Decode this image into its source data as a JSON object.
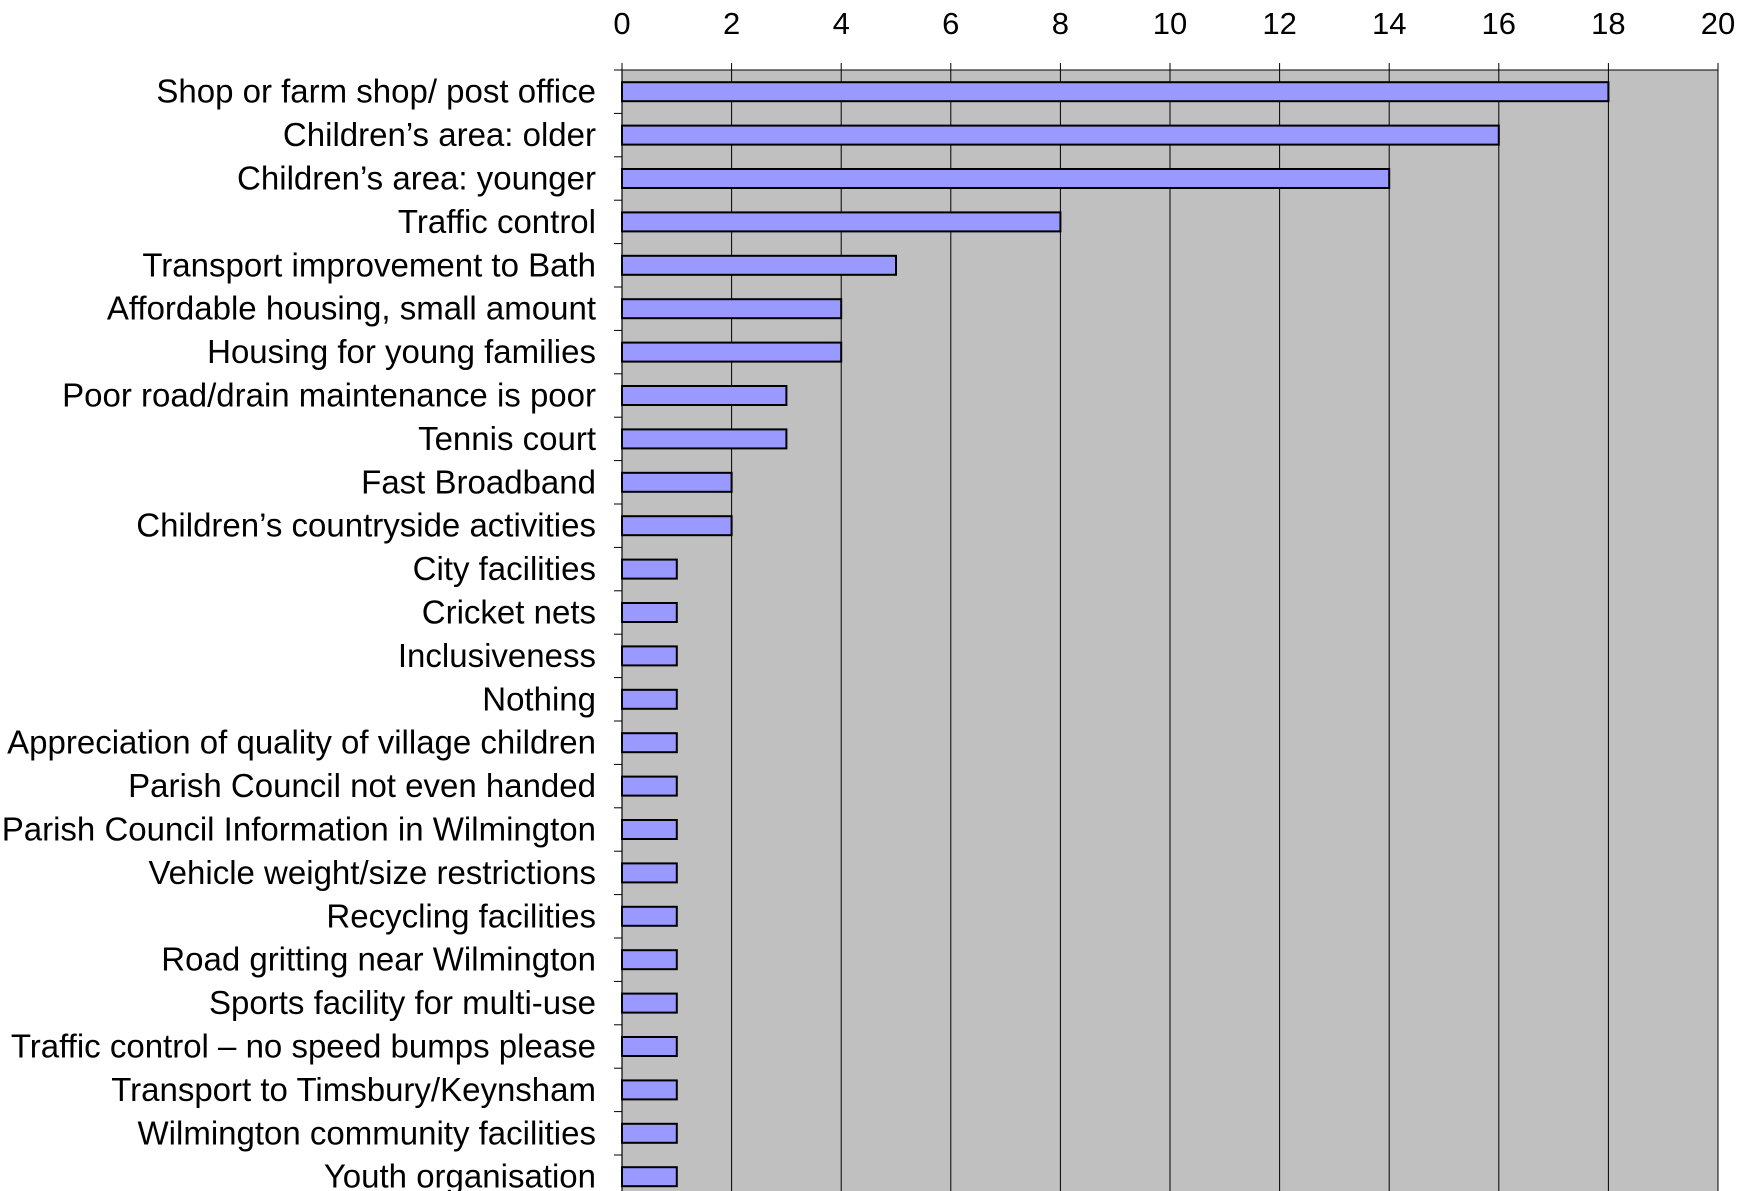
{
  "chart_data": {
    "type": "bar",
    "orientation": "horizontal",
    "title": "",
    "xlabel": "",
    "ylabel": "",
    "categories": [
      "Shop or farm shop/ post office",
      "Children’s area: older",
      "Children’s area: younger",
      "Traffic control",
      "Transport improvement to Bath",
      "Affordable housing, small amount",
      "Housing for young families",
      "Poor road/drain maintenance is poor",
      "Tennis court",
      "Fast Broadband",
      "Children’s countryside activities",
      "City facilities",
      "Cricket nets",
      "Inclusiveness",
      "Nothing",
      "Appreciation of quality of village children",
      "Parish Council not even handed",
      "Parish Council Information in Wilmington",
      "Vehicle weight/size restrictions",
      "Recycling facilities",
      "Road gritting near Wilmington",
      "Sports facility for multi-use",
      "Traffic control – no speed bumps please",
      "Transport to Timsbury/Keynsham",
      "Wilmington community facilities",
      "Youth organisation"
    ],
    "values": [
      18,
      16,
      14,
      8,
      5,
      4,
      4,
      3,
      3,
      2,
      2,
      1,
      1,
      1,
      1,
      1,
      1,
      1,
      1,
      1,
      1,
      1,
      1,
      1,
      1,
      1
    ],
    "xlim": [
      0,
      20
    ],
    "x_ticks": [
      "0",
      "2",
      "4",
      "6",
      "8",
      "10",
      "12",
      "14",
      "16",
      "18",
      "20"
    ],
    "x_axis_position": "top",
    "grid": true,
    "legend": "none",
    "colors": {
      "bar_fill": "#9999ff",
      "bar_stroke": "#000000",
      "plot_background": "#c0c0c0",
      "gridline": "#000000"
    }
  }
}
